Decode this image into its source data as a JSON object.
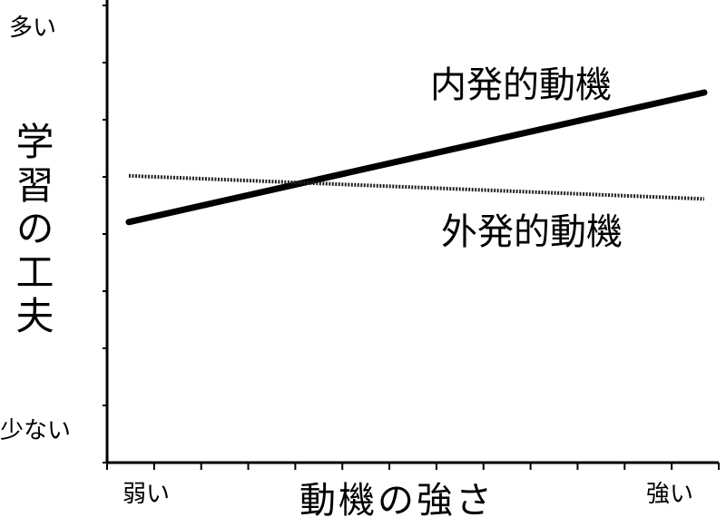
{
  "chart_data": {
    "type": "line",
    "xlabel": "動機の強さ",
    "ylabel": "学習の工夫",
    "x_tick_labels": {
      "low": "弱い",
      "high": "強い"
    },
    "y_tick_labels": {
      "high": "多い",
      "low": "少ない"
    },
    "x": [
      0,
      1
    ],
    "xlim": [
      0,
      1
    ],
    "ylim": [
      0,
      1
    ],
    "series": [
      {
        "name": "内発的動機",
        "values": [
          0.52,
          0.8
        ],
        "style": "solid",
        "color": "#000000"
      },
      {
        "name": "外発的動機",
        "values": [
          0.62,
          0.57
        ],
        "style": "dashed",
        "color": "#222222"
      }
    ]
  }
}
